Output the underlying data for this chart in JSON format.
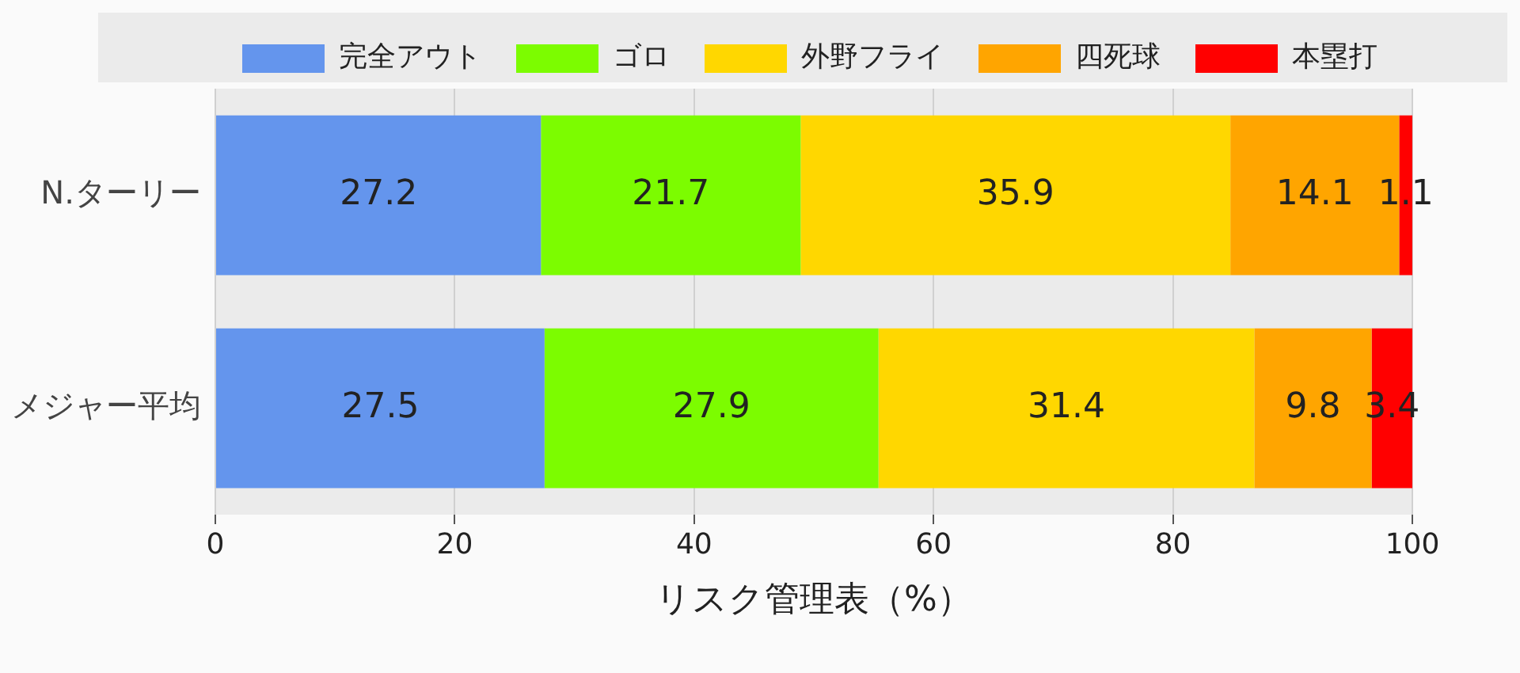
{
  "chart_data": {
    "type": "bar",
    "orientation": "horizontal",
    "stacked": true,
    "xlabel": "リスク管理表（%）",
    "categories": [
      "N.ターリー",
      "メジャー平均"
    ],
    "series": [
      {
        "name": "完全アウト",
        "color": "#6495ed",
        "values": [
          27.2,
          27.5
        ]
      },
      {
        "name": "ゴロ",
        "color": "#7cfc00",
        "values": [
          21.7,
          27.9
        ]
      },
      {
        "name": "外野フライ",
        "color": "#ffd700",
        "values": [
          35.9,
          31.4
        ]
      },
      {
        "name": "四死球",
        "color": "#ffa500",
        "values": [
          14.1,
          9.8
        ]
      },
      {
        "name": "本塁打",
        "color": "#ff0000",
        "values": [
          1.1,
          3.4
        ]
      }
    ],
    "xlim": [
      0,
      100
    ],
    "xticks": [
      0,
      20,
      40,
      60,
      80,
      100
    ],
    "grid": "x",
    "legend": "top",
    "data_labels": true
  }
}
